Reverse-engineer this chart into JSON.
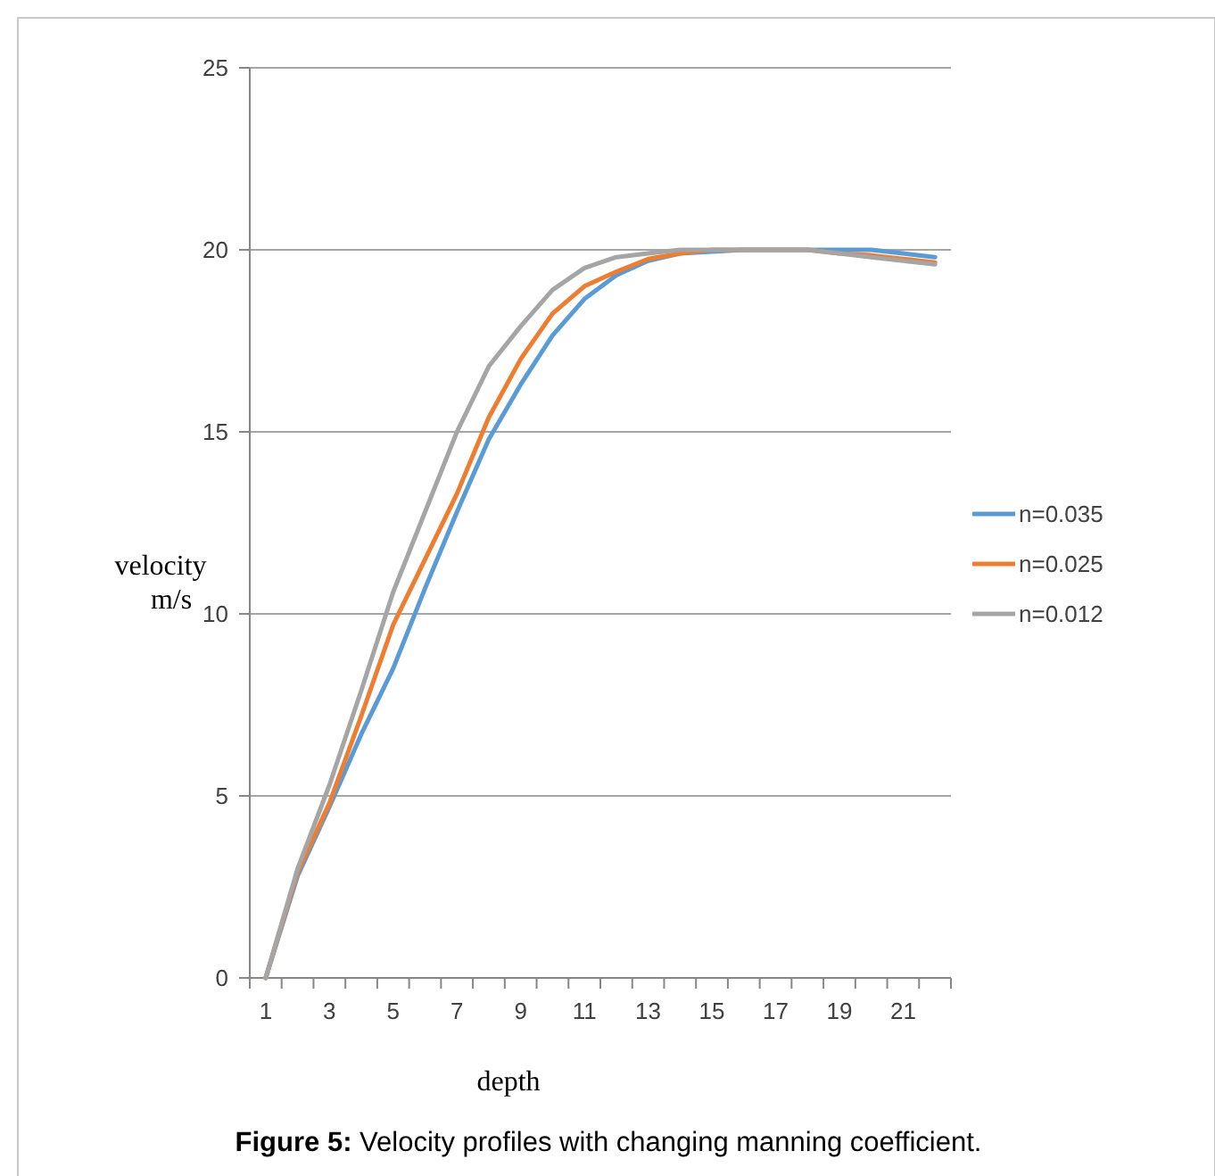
{
  "chart_data": {
    "type": "line",
    "title": "Figure 5: Velocity profiles with changing manning coefficient.",
    "xlabel": "depth",
    "ylabel": "velocity m/s",
    "x": [
      1,
      2,
      3,
      4,
      5,
      6,
      7,
      8,
      9,
      10,
      11,
      12,
      13,
      14,
      15,
      16,
      17,
      18,
      19,
      20,
      21,
      22
    ],
    "xlim": [
      0.5,
      22.5
    ],
    "xticks": [
      1,
      3,
      5,
      7,
      9,
      11,
      13,
      15,
      17,
      19,
      21
    ],
    "series": [
      {
        "name": "n=0.035",
        "color": "#5b9bd5",
        "values": [
          0,
          2.8,
          4.7,
          6.7,
          8.5,
          10.7,
          12.8,
          14.8,
          16.3,
          17.65,
          18.65,
          19.3,
          19.7,
          19.9,
          19.95,
          20,
          20,
          20,
          20,
          20,
          19.9,
          19.8
        ]
      },
      {
        "name": "n=0.025",
        "color": "#ed7d31",
        "values": [
          0,
          2.9,
          4.8,
          7.2,
          9.7,
          11.5,
          13.3,
          15.4,
          17,
          18.25,
          19,
          19.4,
          19.75,
          19.9,
          20,
          20,
          20,
          20,
          19.9,
          19.85,
          19.75,
          19.65
        ]
      },
      {
        "name": "n=0.012",
        "color": "#a5a5a5",
        "values": [
          0,
          3,
          5.3,
          7.9,
          10.6,
          12.8,
          15,
          16.8,
          17.9,
          18.9,
          19.5,
          19.8,
          19.9,
          20,
          20,
          20,
          20,
          20,
          19.9,
          19.8,
          19.7,
          19.6
        ]
      }
    ],
    "ylim": [
      0,
      25
    ],
    "yticks": [
      0,
      5,
      10,
      15,
      20,
      25
    ],
    "grid": "y",
    "legend": "right",
    "marker": "none",
    "line_style": "solid"
  }
}
